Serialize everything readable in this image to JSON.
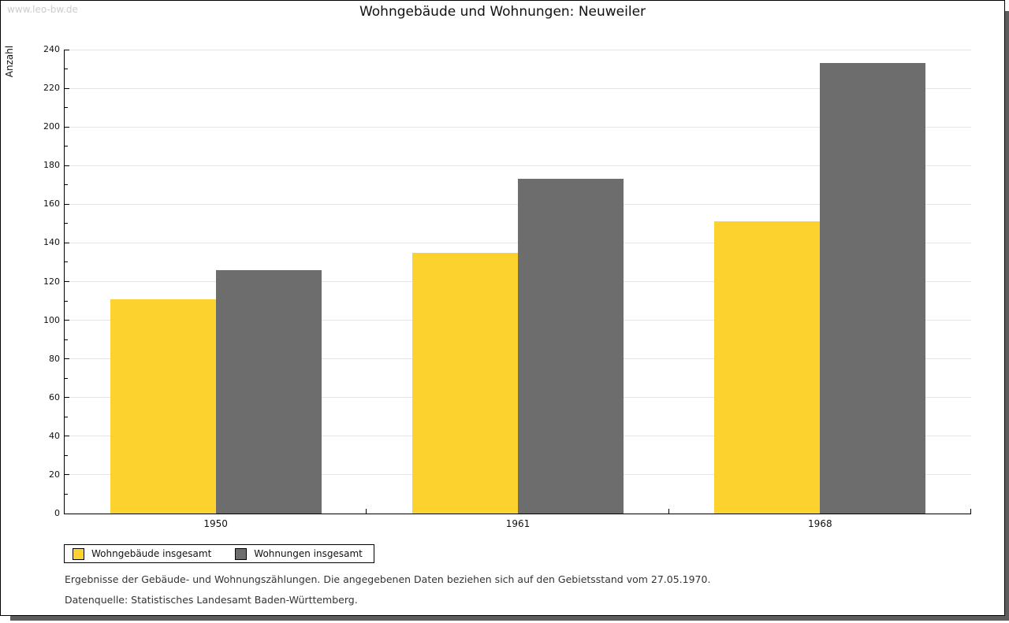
{
  "watermark": "www.leo-bw.de",
  "title": "Wohngebäude und Wohnungen: Neuweiler",
  "colors": {
    "bar_yellow": "#fcd32e",
    "bar_gray": "#6d6d6d",
    "grid": "#e4e4e4",
    "axis": "#000000",
    "watermark": "#cccccc",
    "shadow": "#5d5d5d"
  },
  "chart_data": {
    "type": "bar",
    "title": "Wohngebäude und Wohnungen: Neuweiler",
    "xlabel": "",
    "ylabel": "Anzahl",
    "categories": [
      "1950",
      "1961",
      "1968"
    ],
    "series": [
      {
        "name": "Wohngebäude insgesamt",
        "color": "#fcd32e",
        "values": [
          111,
          135,
          151
        ]
      },
      {
        "name": "Wohnungen insgesamt",
        "color": "#6d6d6d",
        "values": [
          126,
          173,
          233
        ]
      }
    ],
    "ylim": [
      0,
      240
    ],
    "ytick_major": 20,
    "ytick_minor": 10,
    "grid": true,
    "legend_position": "bottom-left"
  },
  "legend": {
    "items": [
      {
        "label": "Wohngebäude insgesamt",
        "color": "#fcd32e"
      },
      {
        "label": "Wohnungen insgesamt",
        "color": "#6d6d6d"
      }
    ]
  },
  "footnotes": [
    "Ergebnisse der Gebäude- und Wohnungszählungen. Die angegebenen Daten beziehen sich auf den Gebietsstand vom 27.05.1970.",
    "Datenquelle: Statistisches Landesamt Baden-Württemberg."
  ]
}
